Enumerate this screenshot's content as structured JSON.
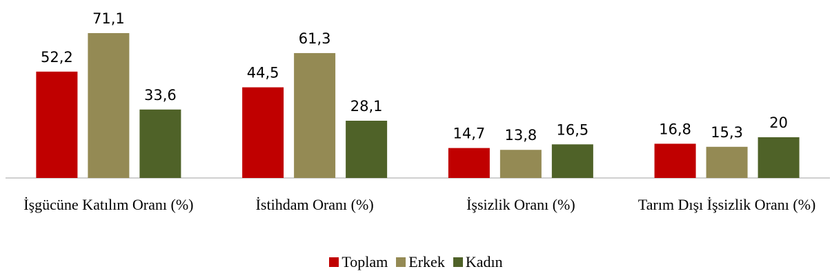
{
  "chart_data": {
    "type": "bar",
    "categories": [
      "İşgücüne Katılım Oranı (%)",
      "İstihdam Oranı (%)",
      "İşsizlik Oranı (%)",
      "Tarım Dışı İşsizlik Oranı (%)"
    ],
    "series": [
      {
        "name": "Toplam",
        "color": "#c00000",
        "values": [
          52.2,
          44.5,
          14.7,
          16.8
        ],
        "value_labels": [
          "52,2",
          "44,5",
          "14,7",
          "16,8"
        ]
      },
      {
        "name": "Erkek",
        "color": "#948a54",
        "values": [
          71.1,
          61.3,
          13.8,
          15.3
        ],
        "value_labels": [
          "71,1",
          "61,3",
          "13,8",
          "15,3"
        ]
      },
      {
        "name": "Kadın",
        "color": "#4f6228",
        "values": [
          33.6,
          28.1,
          16.5,
          20
        ],
        "value_labels": [
          "33,6",
          "28,1",
          "16,5",
          "20"
        ]
      }
    ],
    "legend": "bottom"
  }
}
